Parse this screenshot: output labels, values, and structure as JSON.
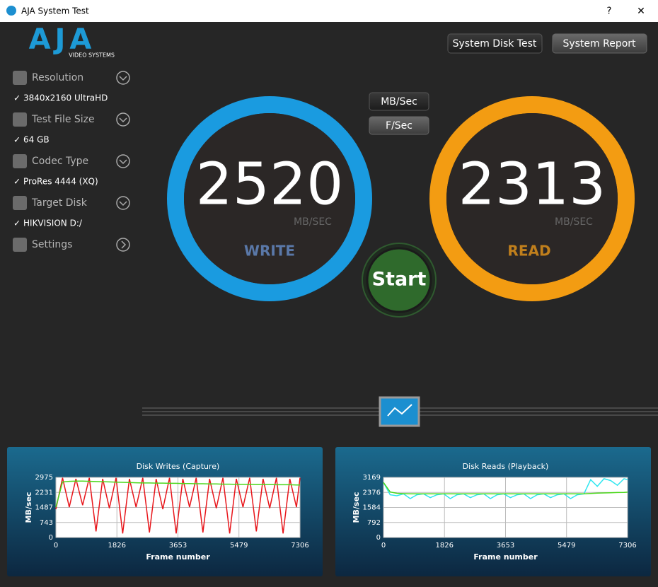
{
  "window": {
    "title": "AJA System Test",
    "help": "?",
    "close": "✕"
  },
  "logo": {
    "brand": "AJA",
    "sub": "VIDEO SYSTEMS"
  },
  "buttons": {
    "disk_test": "System Disk Test",
    "report": "System Report",
    "mbsec": "MB/Sec",
    "fsec": "F/Sec",
    "start": "Start"
  },
  "sidebar": [
    {
      "label": "Resolution",
      "value": "3840x2160 UltraHD"
    },
    {
      "label": "Test File Size",
      "value": "64 GB"
    },
    {
      "label": "Codec Type",
      "value": "ProRes 4444 (XQ)"
    },
    {
      "label": "Target Disk",
      "value": "HIKVISION D:/"
    },
    {
      "label": "Settings"
    }
  ],
  "gauges": [
    {
      "value": 2520,
      "unit": "MB/SEC",
      "label": "WRITE"
    },
    {
      "value": 2313,
      "unit": "MB/SEC",
      "label": "READ"
    }
  ],
  "chart_data": [
    {
      "type": "line",
      "title": "Disk Writes (Capture)",
      "x_label": "Frame number",
      "y_label": "MB/sec",
      "xlim": [
        0,
        7306
      ],
      "xticks": [
        0,
        1826,
        3653,
        5479,
        7306
      ],
      "ylim": [
        0,
        2975
      ],
      "yticks": [
        0,
        743,
        1487,
        2231,
        2975
      ],
      "grid": true,
      "x": [
        0,
        200,
        400,
        600,
        800,
        1000,
        1200,
        1400,
        1600,
        1800,
        2000,
        2200,
        2400,
        2600,
        2800,
        3000,
        3200,
        3400,
        3600,
        3800,
        4000,
        4200,
        4400,
        4600,
        4800,
        5000,
        5200,
        5400,
        5600,
        5800,
        6000,
        6200,
        6400,
        6600,
        6800,
        7000,
        7200,
        7306
      ],
      "series": [
        {
          "color": "#e8161b",
          "values": [
            1400,
            2950,
            1500,
            2900,
            1600,
            2950,
            300,
            2900,
            1450,
            2950,
            200,
            2900,
            1500,
            2950,
            250,
            2900,
            1400,
            2950,
            200,
            2900,
            1500,
            2950,
            250,
            2900,
            1450,
            2950,
            200,
            2900,
            1500,
            2950,
            300,
            2900,
            1450,
            2950,
            200,
            2900,
            1500,
            2950
          ]
        },
        {
          "color": "#4cd81c",
          "values": [
            1500,
            2750,
            2780,
            2790,
            2790,
            2780,
            2770,
            2760,
            2750,
            2740,
            2730,
            2720,
            2710,
            2700,
            2700,
            2690,
            2690,
            2680,
            2680,
            2670,
            2670,
            2660,
            2660,
            2650,
            2650,
            2640,
            2640,
            2630,
            2630,
            2630,
            2620,
            2620,
            2620,
            2610,
            2610,
            2610,
            2600,
            2600
          ]
        }
      ]
    },
    {
      "type": "line",
      "title": "Disk Reads (Playback)",
      "x_label": "Frame number",
      "y_label": "MB/sec",
      "xlim": [
        0,
        7306
      ],
      "xticks": [
        0,
        1826,
        3653,
        5479,
        7306
      ],
      "ylim": [
        0,
        3169
      ],
      "yticks": [
        0,
        792,
        1584,
        2376,
        3169
      ],
      "grid": true,
      "x": [
        0,
        200,
        400,
        600,
        800,
        1000,
        1200,
        1400,
        1600,
        1800,
        2000,
        2200,
        2400,
        2600,
        2800,
        3000,
        3200,
        3400,
        3600,
        3800,
        4000,
        4200,
        4400,
        4600,
        4800,
        5000,
        5200,
        5400,
        5600,
        5800,
        6000,
        6200,
        6400,
        6600,
        6800,
        7000,
        7200,
        7306
      ],
      "series": [
        {
          "color": "#2ee6f0",
          "values": [
            2900,
            2250,
            2200,
            2300,
            2050,
            2250,
            2300,
            2100,
            2250,
            2300,
            2050,
            2250,
            2300,
            2100,
            2250,
            2300,
            2050,
            2250,
            2300,
            2100,
            2250,
            2300,
            2050,
            2250,
            2300,
            2100,
            2250,
            2300,
            2050,
            2250,
            2300,
            3050,
            2700,
            3100,
            3000,
            2750,
            3100,
            3050
          ]
        },
        {
          "color": "#4cd81c",
          "values": [
            2900,
            2400,
            2330,
            2310,
            2300,
            2300,
            2300,
            2300,
            2300,
            2300,
            2300,
            2300,
            2300,
            2300,
            2300,
            2300,
            2300,
            2300,
            2300,
            2300,
            2300,
            2300,
            2300,
            2300,
            2300,
            2300,
            2300,
            2300,
            2300,
            2300,
            2300,
            2320,
            2340,
            2350,
            2360,
            2370,
            2380,
            2390
          ]
        }
      ]
    }
  ]
}
